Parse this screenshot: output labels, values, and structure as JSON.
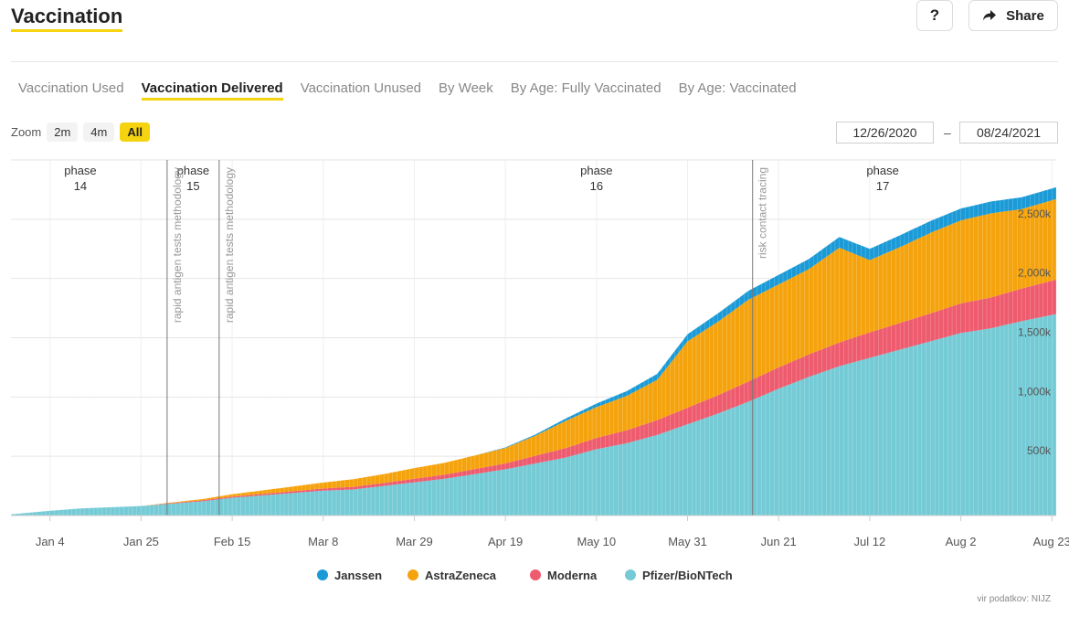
{
  "header": {
    "title": "Vaccination",
    "help_label": "?",
    "share_label": "Share"
  },
  "tabs": [
    {
      "label": "Vaccination Used",
      "active": false
    },
    {
      "label": "Vaccination Delivered",
      "active": true
    },
    {
      "label": "Vaccination Unused",
      "active": false
    },
    {
      "label": "By Week",
      "active": false
    },
    {
      "label": "By Age: Fully Vaccinated",
      "active": false
    },
    {
      "label": "By Age: Vaccinated",
      "active": false
    }
  ],
  "zoom": {
    "label": "Zoom",
    "options": [
      "2m",
      "4m",
      "All"
    ],
    "selected": "All"
  },
  "date_range": {
    "from": "12/26/2020",
    "separator": "–",
    "to": "08/24/2021"
  },
  "source": "vir podatkov: NIJZ",
  "colors": {
    "Janssen": "#1a9ad6",
    "AstraZeneca": "#f5a30d",
    "Moderna": "#ee5b6e",
    "Pfizer/BioNTech": "#74cbd6",
    "accent": "#f5d310"
  },
  "chart_data": {
    "type": "area",
    "stacked": true,
    "x_start": "2020-12-26",
    "x_end": "2021-08-24",
    "x_ticks": [
      {
        "date": "2021-01-04",
        "label": "Jan 4"
      },
      {
        "date": "2021-01-25",
        "label": "Jan 25"
      },
      {
        "date": "2021-02-15",
        "label": "Feb 15"
      },
      {
        "date": "2021-03-08",
        "label": "Mar 8"
      },
      {
        "date": "2021-03-29",
        "label": "Mar 29"
      },
      {
        "date": "2021-04-19",
        "label": "Apr 19"
      },
      {
        "date": "2021-05-10",
        "label": "May 10"
      },
      {
        "date": "2021-05-31",
        "label": "May 31"
      },
      {
        "date": "2021-06-21",
        "label": "Jun 21"
      },
      {
        "date": "2021-07-12",
        "label": "Jul 12"
      },
      {
        "date": "2021-08-02",
        "label": "Aug 2"
      },
      {
        "date": "2021-08-23",
        "label": "Aug 23"
      }
    ],
    "y_ticks": [
      {
        "value": 500000,
        "label": "500k"
      },
      {
        "value": 1000000,
        "label": "1,000k"
      },
      {
        "value": 1500000,
        "label": "1,500k"
      },
      {
        "value": 2000000,
        "label": "2,000k"
      },
      {
        "value": 2500000,
        "label": "2,500k"
      }
    ],
    "ylim": [
      0,
      3000000
    ],
    "y_axis_position": "right",
    "grid": true,
    "legend_position": "bottom",
    "series": [
      {
        "name": "Pfizer/BioNTech",
        "points": [
          [
            "2020-12-26",
            10000
          ],
          [
            "2021-01-04",
            40000
          ],
          [
            "2021-01-11",
            60000
          ],
          [
            "2021-01-18",
            70000
          ],
          [
            "2021-01-25",
            80000
          ],
          [
            "2021-02-01",
            100000
          ],
          [
            "2021-02-08",
            120000
          ],
          [
            "2021-02-15",
            150000
          ],
          [
            "2021-02-22",
            170000
          ],
          [
            "2021-03-01",
            190000
          ],
          [
            "2021-03-08",
            210000
          ],
          [
            "2021-03-15",
            220000
          ],
          [
            "2021-03-22",
            250000
          ],
          [
            "2021-03-29",
            280000
          ],
          [
            "2021-04-05",
            310000
          ],
          [
            "2021-04-12",
            350000
          ],
          [
            "2021-04-19",
            390000
          ],
          [
            "2021-04-26",
            440000
          ],
          [
            "2021-05-03",
            490000
          ],
          [
            "2021-05-10",
            560000
          ],
          [
            "2021-05-17",
            610000
          ],
          [
            "2021-05-24",
            680000
          ],
          [
            "2021-05-31",
            770000
          ],
          [
            "2021-06-07",
            860000
          ],
          [
            "2021-06-14",
            960000
          ],
          [
            "2021-06-21",
            1070000
          ],
          [
            "2021-06-28",
            1170000
          ],
          [
            "2021-07-05",
            1260000
          ],
          [
            "2021-07-12",
            1330000
          ],
          [
            "2021-07-19",
            1400000
          ],
          [
            "2021-07-26",
            1470000
          ],
          [
            "2021-08-02",
            1540000
          ],
          [
            "2021-08-09",
            1580000
          ],
          [
            "2021-08-16",
            1640000
          ],
          [
            "2021-08-24",
            1700000
          ]
        ]
      },
      {
        "name": "Moderna",
        "points": [
          [
            "2020-12-26",
            0
          ],
          [
            "2021-01-04",
            0
          ],
          [
            "2021-01-11",
            0
          ],
          [
            "2021-01-18",
            0
          ],
          [
            "2021-01-25",
            0
          ],
          [
            "2021-02-01",
            5000
          ],
          [
            "2021-02-08",
            8000
          ],
          [
            "2021-02-15",
            10000
          ],
          [
            "2021-02-22",
            12000
          ],
          [
            "2021-03-01",
            15000
          ],
          [
            "2021-03-08",
            18000
          ],
          [
            "2021-03-15",
            22000
          ],
          [
            "2021-03-22",
            25000
          ],
          [
            "2021-03-29",
            30000
          ],
          [
            "2021-04-05",
            35000
          ],
          [
            "2021-04-12",
            42000
          ],
          [
            "2021-04-19",
            50000
          ],
          [
            "2021-04-26",
            65000
          ],
          [
            "2021-05-03",
            80000
          ],
          [
            "2021-05-10",
            95000
          ],
          [
            "2021-05-17",
            110000
          ],
          [
            "2021-05-24",
            125000
          ],
          [
            "2021-05-31",
            140000
          ],
          [
            "2021-06-07",
            155000
          ],
          [
            "2021-06-14",
            170000
          ],
          [
            "2021-06-21",
            180000
          ],
          [
            "2021-06-28",
            190000
          ],
          [
            "2021-07-05",
            200000
          ],
          [
            "2021-07-12",
            215000
          ],
          [
            "2021-07-19",
            225000
          ],
          [
            "2021-07-26",
            235000
          ],
          [
            "2021-08-02",
            250000
          ],
          [
            "2021-08-09",
            260000
          ],
          [
            "2021-08-16",
            275000
          ],
          [
            "2021-08-24",
            290000
          ]
        ]
      },
      {
        "name": "AstraZeneca",
        "points": [
          [
            "2020-12-26",
            0
          ],
          [
            "2021-01-04",
            0
          ],
          [
            "2021-01-11",
            0
          ],
          [
            "2021-01-18",
            0
          ],
          [
            "2021-01-25",
            0
          ],
          [
            "2021-02-01",
            5000
          ],
          [
            "2021-02-08",
            10000
          ],
          [
            "2021-02-15",
            20000
          ],
          [
            "2021-02-22",
            30000
          ],
          [
            "2021-03-01",
            40000
          ],
          [
            "2021-03-08",
            50000
          ],
          [
            "2021-03-15",
            65000
          ],
          [
            "2021-03-22",
            75000
          ],
          [
            "2021-03-29",
            90000
          ],
          [
            "2021-04-05",
            100000
          ],
          [
            "2021-04-12",
            115000
          ],
          [
            "2021-04-19",
            130000
          ],
          [
            "2021-04-26",
            170000
          ],
          [
            "2021-05-03",
            230000
          ],
          [
            "2021-05-10",
            260000
          ],
          [
            "2021-05-17",
            290000
          ],
          [
            "2021-05-24",
            340000
          ],
          [
            "2021-05-31",
            560000
          ],
          [
            "2021-06-07",
            620000
          ],
          [
            "2021-06-14",
            690000
          ],
          [
            "2021-06-21",
            700000
          ],
          [
            "2021-06-28",
            720000
          ],
          [
            "2021-07-05",
            800000
          ],
          [
            "2021-07-12",
            610000
          ],
          [
            "2021-07-19",
            640000
          ],
          [
            "2021-07-26",
            680000
          ],
          [
            "2021-08-02",
            700000
          ],
          [
            "2021-08-09",
            710000
          ],
          [
            "2021-08-16",
            670000
          ],
          [
            "2021-08-24",
            680000
          ]
        ]
      },
      {
        "name": "Janssen",
        "points": [
          [
            "2020-12-26",
            0
          ],
          [
            "2021-01-04",
            0
          ],
          [
            "2021-01-11",
            0
          ],
          [
            "2021-01-18",
            0
          ],
          [
            "2021-01-25",
            0
          ],
          [
            "2021-02-01",
            0
          ],
          [
            "2021-02-08",
            0
          ],
          [
            "2021-02-15",
            0
          ],
          [
            "2021-02-22",
            0
          ],
          [
            "2021-03-01",
            0
          ],
          [
            "2021-03-08",
            0
          ],
          [
            "2021-03-15",
            0
          ],
          [
            "2021-03-22",
            0
          ],
          [
            "2021-03-29",
            0
          ],
          [
            "2021-04-05",
            0
          ],
          [
            "2021-04-12",
            0
          ],
          [
            "2021-04-19",
            5000
          ],
          [
            "2021-04-26",
            10000
          ],
          [
            "2021-05-03",
            20000
          ],
          [
            "2021-05-10",
            30000
          ],
          [
            "2021-05-17",
            40000
          ],
          [
            "2021-05-24",
            50000
          ],
          [
            "2021-05-31",
            60000
          ],
          [
            "2021-06-07",
            70000
          ],
          [
            "2021-06-14",
            75000
          ],
          [
            "2021-06-21",
            80000
          ],
          [
            "2021-06-28",
            85000
          ],
          [
            "2021-07-05",
            90000
          ],
          [
            "2021-07-12",
            95000
          ],
          [
            "2021-07-19",
            100000
          ],
          [
            "2021-07-26",
            100000
          ],
          [
            "2021-08-02",
            100000
          ],
          [
            "2021-08-09",
            100000
          ],
          [
            "2021-08-16",
            100000
          ],
          [
            "2021-08-24",
            100000
          ]
        ]
      }
    ],
    "phases": [
      {
        "line1": "phase",
        "line2": "14",
        "date": "2021-01-11"
      },
      {
        "line1": "phase",
        "line2": "15",
        "date": "2021-02-06"
      },
      {
        "line1": "phase",
        "line2": "16",
        "date": "2021-05-10"
      },
      {
        "line1": "phase",
        "line2": "17",
        "date": "2021-07-15"
      }
    ],
    "annotations": [
      {
        "label": "rapid antigen tests methodology",
        "date": "2021-01-31"
      },
      {
        "label": "rapid antigen tests methodology",
        "date": "2021-02-12"
      },
      {
        "label": "risk contact tracing",
        "date": "2021-06-15"
      }
    ]
  }
}
